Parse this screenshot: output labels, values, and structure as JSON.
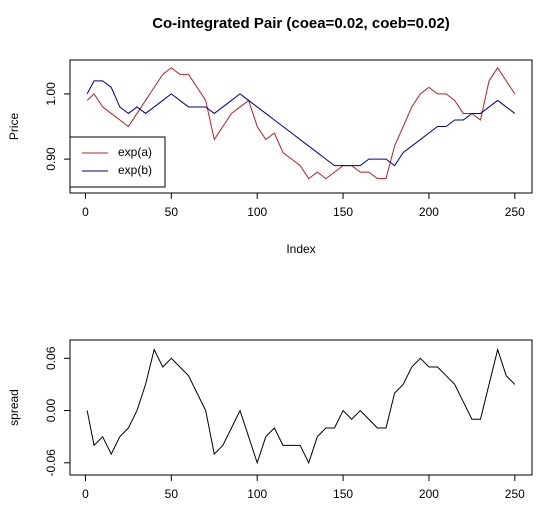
{
  "chart_data": [
    {
      "type": "line",
      "title": "Co-integrated Pair (coea=0.02,  coeb=0.02)",
      "xlabel": "Index",
      "ylabel": "Price",
      "x": [
        1,
        5,
        10,
        15,
        20,
        25,
        30,
        35,
        40,
        45,
        50,
        55,
        60,
        65,
        70,
        75,
        80,
        85,
        90,
        95,
        100,
        105,
        110,
        115,
        120,
        125,
        130,
        135,
        140,
        145,
        150,
        155,
        160,
        165,
        170,
        175,
        180,
        185,
        190,
        195,
        200,
        205,
        210,
        215,
        220,
        225,
        230,
        235,
        240,
        245,
        250
      ],
      "series": [
        {
          "name": "exp(a)",
          "color": "#b22222",
          "values": [
            0.99,
            1.0,
            0.98,
            0.97,
            0.96,
            0.95,
            0.97,
            0.99,
            1.01,
            1.03,
            1.04,
            1.03,
            1.03,
            1.01,
            0.99,
            0.93,
            0.95,
            0.97,
            0.98,
            0.99,
            0.95,
            0.93,
            0.94,
            0.91,
            0.9,
            0.89,
            0.87,
            0.88,
            0.87,
            0.88,
            0.89,
            0.89,
            0.88,
            0.88,
            0.87,
            0.87,
            0.92,
            0.95,
            0.98,
            1.0,
            1.01,
            1.0,
            1.0,
            0.99,
            0.97,
            0.97,
            0.96,
            1.02,
            1.04,
            1.02,
            1.0
          ]
        },
        {
          "name": "exp(b)",
          "color": "#00008b",
          "values": [
            1.0,
            1.02,
            1.02,
            1.01,
            0.98,
            0.97,
            0.98,
            0.97,
            0.98,
            0.99,
            1.0,
            0.99,
            0.98,
            0.98,
            0.98,
            0.97,
            0.98,
            0.99,
            1.0,
            0.99,
            0.98,
            0.97,
            0.96,
            0.95,
            0.94,
            0.93,
            0.92,
            0.91,
            0.9,
            0.89,
            0.89,
            0.89,
            0.89,
            0.9,
            0.9,
            0.9,
            0.89,
            0.91,
            0.92,
            0.93,
            0.94,
            0.95,
            0.95,
            0.96,
            0.96,
            0.97,
            0.97,
            0.98,
            0.99,
            0.98,
            0.97
          ]
        }
      ],
      "xlim": [
        -9,
        260
      ],
      "xticks": [
        0,
        50,
        100,
        150,
        200,
        250
      ],
      "ylim": [
        0.848,
        1.052
      ],
      "yticks": [
        {
          "value": 0.9,
          "label": "0.90"
        },
        {
          "value": 1,
          "label": "1.00"
        }
      ],
      "legend": "bottomleft"
    },
    {
      "type": "line",
      "ylabel": "spread",
      "x": [
        1,
        5,
        10,
        15,
        20,
        25,
        30,
        35,
        40,
        45,
        50,
        55,
        60,
        65,
        70,
        75,
        80,
        85,
        90,
        95,
        100,
        105,
        110,
        115,
        120,
        125,
        130,
        135,
        140,
        145,
        150,
        155,
        160,
        165,
        170,
        175,
        180,
        185,
        190,
        195,
        200,
        205,
        210,
        215,
        220,
        225,
        230,
        235,
        240,
        245,
        250
      ],
      "series": [
        {
          "color": "#000000",
          "values": [
            0.0,
            -0.04,
            -0.03,
            -0.05,
            -0.03,
            -0.02,
            0.0,
            0.03,
            0.07,
            0.05,
            0.06,
            0.05,
            0.04,
            0.02,
            0.0,
            -0.05,
            -0.04,
            -0.02,
            0.0,
            -0.03,
            -0.06,
            -0.03,
            -0.02,
            -0.04,
            -0.04,
            -0.04,
            -0.06,
            -0.03,
            -0.02,
            -0.02,
            0.0,
            -0.01,
            0.0,
            -0.01,
            -0.02,
            -0.02,
            0.02,
            0.03,
            0.05,
            0.06,
            0.05,
            0.05,
            0.04,
            0.03,
            0.01,
            -0.01,
            -0.01,
            0.03,
            0.07,
            0.04,
            0.03
          ]
        }
      ],
      "xlim": [
        -9,
        260
      ],
      "xticks": [
        0,
        50,
        100,
        150,
        200,
        250
      ],
      "ylim": [
        -0.074,
        0.081
      ],
      "yticks": [
        {
          "value": -0.06,
          "label": "-0.06"
        },
        {
          "value": 0,
          "label": "0.00"
        },
        {
          "value": 0.06,
          "label": "0.06"
        }
      ]
    }
  ]
}
